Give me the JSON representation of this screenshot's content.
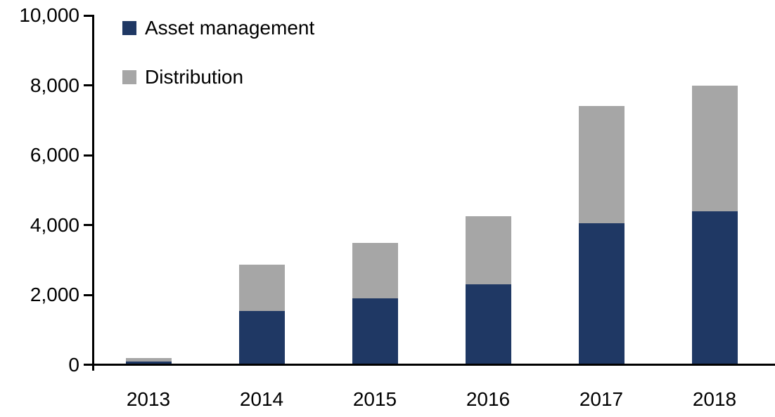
{
  "chart_data": {
    "type": "bar",
    "stacked": true,
    "title": "",
    "xlabel": "",
    "ylabel": "",
    "categories": [
      "2013",
      "2014",
      "2015",
      "2016",
      "2017",
      "2018"
    ],
    "series": [
      {
        "name": "Asset management",
        "color": "#1F3864",
        "values": [
          110,
          1550,
          1900,
          2300,
          4050,
          4400
        ]
      },
      {
        "name": "Distribution",
        "color": "#A6A6A6",
        "values": [
          100,
          1320,
          1600,
          1950,
          3350,
          3600
        ]
      }
    ],
    "totals": [
      210,
      2870,
      3500,
      4250,
      7400,
      8000
    ],
    "ylim": [
      0,
      10000
    ],
    "ytick_step": 2000,
    "ytick_labels": [
      "0",
      "2,000",
      "4,000",
      "6,000",
      "8,000",
      "10,000"
    ],
    "grid": false,
    "legend_position": "top-left-inside",
    "axis_color": "#000000",
    "background_color": "#FFFFFF"
  }
}
